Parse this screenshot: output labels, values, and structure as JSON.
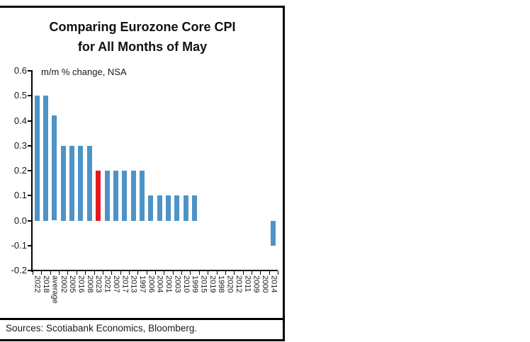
{
  "panel": {
    "title_line1": "Comparing Eurozone Core CPI",
    "title_line2": "for All Months of May",
    "annotation": "m/m % change, NSA",
    "sources": "Sources: Scotiabank Economics, Bloomberg."
  },
  "chart_data": {
    "type": "bar",
    "title": "Comparing Eurozone Core CPI for All Months of May",
    "annotation": "m/m % change, NSA",
    "categories": [
      "2022",
      "2018",
      "average",
      "2002",
      "2005",
      "2016",
      "2008",
      "2023",
      "2021",
      "2007",
      "2017",
      "2013",
      "1997",
      "2006",
      "2004",
      "2001",
      "2003",
      "2010",
      "1999",
      "2015",
      "2019",
      "1998",
      "2020",
      "2012",
      "2011",
      "2009",
      "2000",
      "2014"
    ],
    "values": [
      0.5,
      0.5,
      0.42,
      0.3,
      0.3,
      0.3,
      0.3,
      0.2,
      0.2,
      0.2,
      0.2,
      0.2,
      0.2,
      0.1,
      0.1,
      0.1,
      0.1,
      0.1,
      0.1,
      0.0,
      0.0,
      0.0,
      0.0,
      0.0,
      0.0,
      0.0,
      0.0,
      -0.1
    ],
    "highlight_category": "2023",
    "bar_color": "#4d93c8",
    "highlight_color": "#e4181f",
    "ylim": [
      -0.2,
      0.6
    ],
    "yticks": [
      0.6,
      0.5,
      0.4,
      0.3,
      0.2,
      0.1,
      0.0,
      -0.1,
      -0.2
    ],
    "grid": false,
    "sort_order": "descending",
    "legend": "none",
    "sources_note": "Sources: Scotiabank Economics, Bloomberg."
  }
}
